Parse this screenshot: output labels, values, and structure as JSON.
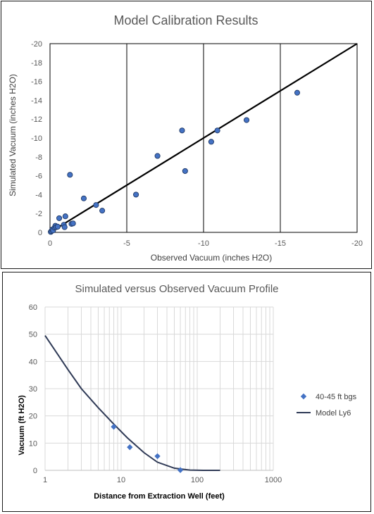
{
  "colors": {
    "marker_fill": "#4472c4",
    "marker_stroke": "#1f3864",
    "line": "#000000",
    "model_line": "#2f3a56",
    "grid_major": "#000000",
    "grid_light": "#d9d9d9"
  },
  "chart_data": [
    {
      "type": "scatter",
      "title": "Model Calibration Results",
      "xlabel": "Observed Vacuum (inches H2O)",
      "ylabel": "Simulated Vacuum  (inches H2O)",
      "xlim": [
        0,
        -20
      ],
      "ylim": [
        0,
        -20
      ],
      "xticks": [
        0,
        -5,
        -10,
        -15,
        -20
      ],
      "yticks": [
        0,
        -2,
        -4,
        -6,
        -8,
        -10,
        -12,
        -14,
        -16,
        -18,
        -20
      ],
      "xtick_labels": [
        "0",
        "-5",
        "-10",
        "-15",
        "-20"
      ],
      "ytick_labels": [
        "0",
        "-2",
        "-4",
        "-6",
        "-8",
        "-10",
        "-12",
        "-14",
        "-16",
        "-18",
        "-20"
      ],
      "grid": "major",
      "points": [
        {
          "x": -0.05,
          "y": -0.05
        },
        {
          "x": -0.1,
          "y": -0.15
        },
        {
          "x": -0.15,
          "y": -0.3
        },
        {
          "x": -0.2,
          "y": -0.2
        },
        {
          "x": -0.3,
          "y": -0.5
        },
        {
          "x": -0.35,
          "y": -0.7
        },
        {
          "x": -0.4,
          "y": -0.55
        },
        {
          "x": -0.5,
          "y": -0.6
        },
        {
          "x": -0.6,
          "y": -1.5
        },
        {
          "x": -0.9,
          "y": -0.8
        },
        {
          "x": -0.95,
          "y": -0.55
        },
        {
          "x": -1.0,
          "y": -1.7
        },
        {
          "x": -1.4,
          "y": -0.9
        },
        {
          "x": -1.5,
          "y": -0.95
        },
        {
          "x": -1.3,
          "y": -6.1
        },
        {
          "x": -2.2,
          "y": -3.6
        },
        {
          "x": -3.0,
          "y": -2.9
        },
        {
          "x": -3.4,
          "y": -2.3
        },
        {
          "x": -5.6,
          "y": -4.0
        },
        {
          "x": -7.0,
          "y": -8.1
        },
        {
          "x": -8.6,
          "y": -10.8
        },
        {
          "x": -8.8,
          "y": -6.5
        },
        {
          "x": -10.5,
          "y": -9.6
        },
        {
          "x": -10.9,
          "y": -10.8
        },
        {
          "x": -12.8,
          "y": -11.9
        },
        {
          "x": -16.1,
          "y": -14.8
        }
      ],
      "reference_line": {
        "x": [
          0,
          -20
        ],
        "y": [
          0,
          -20
        ]
      }
    },
    {
      "type": "scatter",
      "title": "Simulated versus Observed Vacuum Profile",
      "xlabel": "Distance from Extraction Well (feet)",
      "ylabel": "Vacuum (ft H2O)",
      "xscale": "log",
      "xlim": [
        1,
        1000
      ],
      "ylim": [
        0,
        60
      ],
      "xticks": [
        1,
        10,
        100,
        1000
      ],
      "yticks": [
        0,
        10,
        20,
        30,
        40,
        50,
        60
      ],
      "xtick_labels": [
        "1",
        "10",
        "100",
        "1000"
      ],
      "ytick_labels": [
        "0",
        "10",
        "20",
        "30",
        "40",
        "50",
        "60"
      ],
      "grid": "major and minor",
      "legend_position": "right",
      "series": [
        {
          "name": "40-45 ft bgs",
          "type": "scatter",
          "marker": "diamond",
          "x": [
            8,
            13,
            30,
            60
          ],
          "y": [
            16,
            8.5,
            5.2,
            0.1
          ]
        },
        {
          "name": "Model Ly6",
          "type": "line",
          "x": [
            1,
            2,
            3,
            5,
            8,
            12,
            20,
            30,
            50,
            80,
            120,
            200
          ],
          "y": [
            49.5,
            37,
            30,
            23,
            17,
            12,
            6.5,
            3,
            0.8,
            0.1,
            0,
            0
          ]
        }
      ]
    }
  ]
}
